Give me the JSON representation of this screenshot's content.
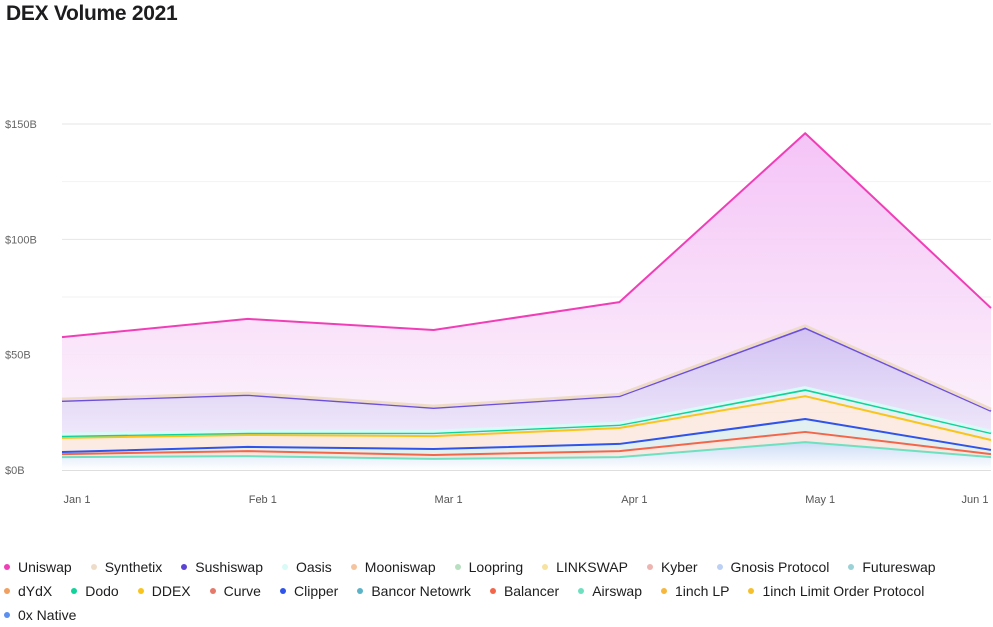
{
  "chart_data": {
    "type": "area",
    "stacked": true,
    "title": "DEX Volume 2021",
    "xlabel": "",
    "ylabel": "",
    "x": [
      "Jan 1",
      "Feb 1",
      "Mar 1",
      "Apr 1",
      "May 1",
      "Jun 1"
    ],
    "ylim": [
      0,
      150
    ],
    "yticks": [
      0,
      50,
      100,
      150
    ],
    "ytick_labels": [
      "$0B",
      "$50B",
      "$100B",
      "$150B"
    ],
    "grid": true,
    "legend_position": "bottom",
    "series": [
      {
        "name": "Airswap",
        "color": "#6ee0bf",
        "fill": "#d8e4f8",
        "values": [
          5.6,
          6.0,
          4.8,
          5.6,
          12.1,
          5.6
        ]
      },
      {
        "name": "Balancer",
        "color": "#f4664a",
        "fill": "#f8e2da",
        "values": [
          1.3,
          2.2,
          1.7,
          2.6,
          4.4,
          1.3
        ]
      },
      {
        "name": "Clipper",
        "color": "#2f54eb",
        "fill": "#dcecee",
        "values": [
          0.9,
          1.8,
          2.6,
          3.1,
          5.6,
          1.8
        ]
      },
      {
        "name": "DDEX",
        "color": "#fac41c",
        "fill": "#fbe6dc",
        "values": [
          6.1,
          5.2,
          5.6,
          6.9,
          9.9,
          4.3
        ]
      },
      {
        "name": "Dodo",
        "color": "#10d39a",
        "fill": "#e3eef0",
        "values": [
          0.8,
          0.8,
          1.3,
          1.3,
          2.7,
          3.0
        ]
      },
      {
        "name": "Oasis",
        "color": "#d8fbf8",
        "fill": "#d8f8f6",
        "values": [
          0.8,
          0.8,
          0.8,
          0.8,
          1.0,
          0.8
        ]
      },
      {
        "name": "Sushiswap",
        "color": "#6a4ee0",
        "fill": "#dccdf5",
        "values": [
          14.4,
          15.7,
          10.1,
          11.7,
          25.8,
          8.8
        ]
      },
      {
        "name": "Synthetix",
        "color": "#efdcc8",
        "fill": "#efe2e8",
        "values": [
          0.8,
          0.8,
          0.8,
          0.8,
          1.0,
          0.8
        ]
      },
      {
        "name": "Uniswap",
        "color": "#f03fb6",
        "fill": "#f5c6f7",
        "values": [
          26.9,
          32.2,
          33.0,
          40.0,
          83.5,
          43.8
        ]
      }
    ],
    "legend": [
      {
        "name": "Uniswap",
        "color": "#f03fb6"
      },
      {
        "name": "Synthetix",
        "color": "#efdcc8"
      },
      {
        "name": "Sushiswap",
        "color": "#5b43d6"
      },
      {
        "name": "Oasis",
        "color": "#d8fbf8"
      },
      {
        "name": "Mooniswap",
        "color": "#f5c49e"
      },
      {
        "name": "Loopring",
        "color": "#b7dfc0"
      },
      {
        "name": "LINKSWAP",
        "color": "#f8e2a0"
      },
      {
        "name": "Kyber",
        "color": "#eeb4b0"
      },
      {
        "name": "Gnosis Protocol",
        "color": "#bcd0f5"
      },
      {
        "name": "Futureswap",
        "color": "#9ad2d8"
      },
      {
        "name": "dYdX",
        "color": "#f0a060"
      },
      {
        "name": "Dodo",
        "color": "#10d39a"
      },
      {
        "name": "DDEX",
        "color": "#fac41c"
      },
      {
        "name": "Curve",
        "color": "#e57a6a"
      },
      {
        "name": "Clipper",
        "color": "#2f54eb"
      },
      {
        "name": "Bancor Netowrk",
        "color": "#5bb3c8"
      },
      {
        "name": "Balancer",
        "color": "#f4664a"
      },
      {
        "name": "Airswap",
        "color": "#6ee0bf"
      },
      {
        "name": "1inch LP",
        "color": "#f6b73c"
      },
      {
        "name": "1inch Limit Order Protocol",
        "color": "#f6c02c"
      },
      {
        "name": "0x Native",
        "color": "#5b8ff0"
      }
    ]
  }
}
